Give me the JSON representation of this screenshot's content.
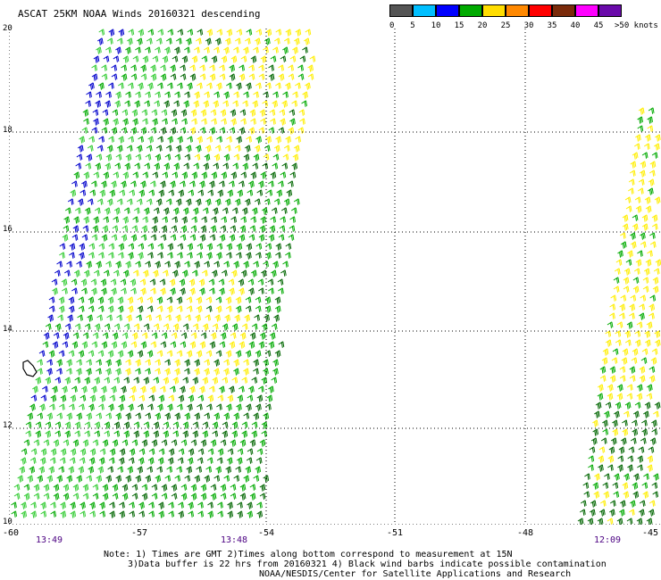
{
  "title": "ASCAT 25KM NOAA Winds 20160321 descending",
  "legend": {
    "units": ">50 knots",
    "swatches": [
      {
        "color": "#555555"
      },
      {
        "color": "#00bfff"
      },
      {
        "color": "#0000ff"
      },
      {
        "color": "#00aa00"
      },
      {
        "color": "#ffdd00"
      },
      {
        "color": "#ff8800"
      },
      {
        "color": "#ff0000"
      },
      {
        "color": "#7a2a0a"
      },
      {
        "color": "#ff00ff"
      },
      {
        "color": "#6a0aaa"
      }
    ],
    "labels": [
      "0",
      "5",
      "10",
      "15",
      "20",
      "25",
      "30",
      "35",
      "40",
      "45"
    ]
  },
  "axes": {
    "y_labels": [
      "20",
      "18",
      "16",
      "14",
      "12",
      "10"
    ],
    "x_labels": [
      "-60",
      "-57",
      "-54",
      "-51",
      "-48",
      "-45"
    ]
  },
  "times": [
    "13:49",
    "13:48",
    "12:09"
  ],
  "notes": {
    "line1": "Note: 1) Times are GMT 2)Times along bottom correspond to measurement at 15N",
    "line2": "3)Data buffer is 22 hrs from 20160321 4) Black wind barbs indicate possible contamination",
    "line3": "NOAA/NESDIS/Center for Satellite Applications and Research"
  },
  "colors": {
    "barb_light_green": "#33cc33",
    "barb_green": "#00aa00",
    "barb_dark_green": "#006600",
    "barb_blue": "#0000cc",
    "barb_yellow": "#ffee00",
    "grid": "#000000"
  }
}
